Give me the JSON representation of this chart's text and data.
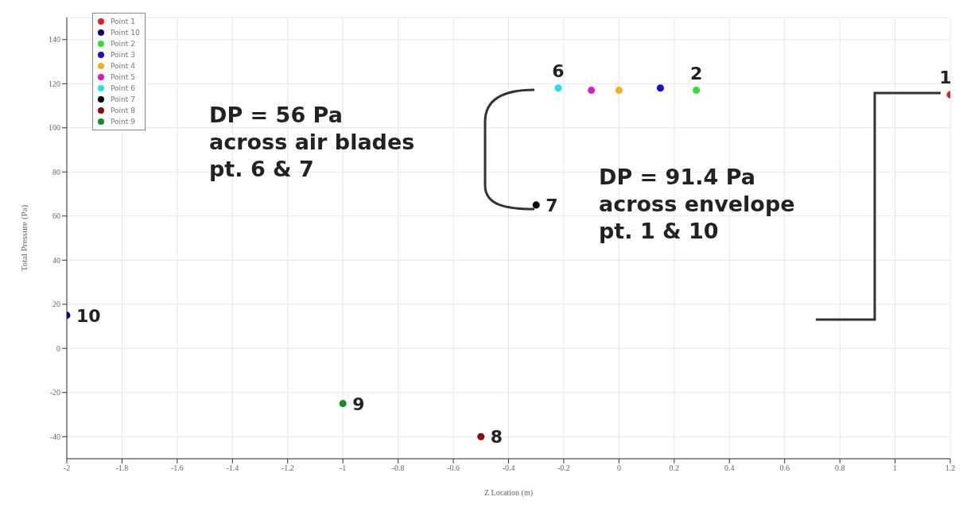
{
  "chart_data": {
    "type": "scatter",
    "xlabel": "Z Location (m)",
    "ylabel": "Total Pressure (Pa)",
    "xlim": [
      -2,
      1.2
    ],
    "xticks": [
      -2,
      -1.8,
      -1.6,
      -1.4,
      -1.2,
      -1,
      -0.8,
      -0.6,
      -0.4,
      -0.2,
      0,
      0.2,
      0.4,
      0.6,
      0.8,
      1,
      1.2
    ],
    "ylim": [
      -50,
      150
    ],
    "yticks": [
      -40,
      -20,
      0,
      20,
      40,
      60,
      80,
      100,
      120,
      140
    ],
    "grid": true,
    "legend": "top left",
    "marker": "circle",
    "series": [
      {
        "name": "Point 1",
        "color": "#e02020",
        "x": [
          1.2
        ],
        "values": [
          115
        ]
      },
      {
        "name": "Point 10",
        "color": "#0a0a6e",
        "x": [
          -2
        ],
        "values": [
          15
        ]
      },
      {
        "name": "Point 2",
        "color": "#33dd33",
        "x": [
          0.28
        ],
        "values": [
          117
        ]
      },
      {
        "name": "Point 3",
        "color": "#1010cc",
        "x": [
          0.15
        ],
        "values": [
          118
        ]
      },
      {
        "name": "Point 4",
        "color": "#f0b020",
        "x": [
          0
        ],
        "values": [
          117
        ]
      },
      {
        "name": "Point 5",
        "color": "#d020c0",
        "x": [
          -0.1
        ],
        "values": [
          117
        ]
      },
      {
        "name": "Point 6",
        "color": "#20e0e0",
        "x": [
          -0.22
        ],
        "values": [
          118
        ]
      },
      {
        "name": "Point 7",
        "color": "#000000",
        "x": [
          -0.3
        ],
        "values": [
          65
        ]
      },
      {
        "name": "Point 8",
        "color": "#8b0a0a",
        "x": [
          -0.5
        ],
        "values": [
          -40
        ]
      },
      {
        "name": "Point 9",
        "color": "#109020",
        "x": [
          -1
        ],
        "values": [
          -25
        ]
      }
    ],
    "annotations": [
      {
        "text": "1",
        "x": 1.2,
        "y": 115
      },
      {
        "text": "10",
        "x": -2,
        "y": 15
      },
      {
        "text": "2",
        "x": 0.28,
        "y": 117
      },
      {
        "text": "6",
        "x": -0.22,
        "y": 118
      },
      {
        "text": "7",
        "x": -0.3,
        "y": 65
      },
      {
        "text": "8",
        "x": -0.5,
        "y": -40
      },
      {
        "text": "9",
        "x": -1,
        "y": -25
      },
      "DP = 56 Pa\nacross air blades\npt. 6 & 7",
      "DP = 91.4 Pa\nacross envelope\npt. 1 & 10"
    ]
  }
}
